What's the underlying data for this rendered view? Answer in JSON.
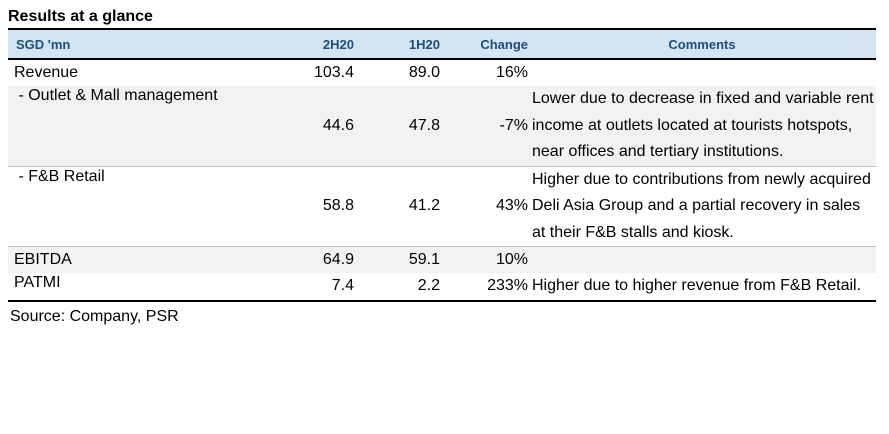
{
  "title": "Results at a glance",
  "header": {
    "label": "SGD 'mn",
    "col1": "2H20",
    "col2": "1H20",
    "col3": "Change",
    "col4": "Comments"
  },
  "rows": [
    {
      "label": "Revenue",
      "v1": "103.4",
      "v2": "89.0",
      "change": "16%",
      "comment": ""
    },
    {
      "label": " - Outlet & Mall management",
      "v1": "44.6",
      "v2": "47.8",
      "change": "-7%",
      "comment": "Lower due to decrease in fixed and variable rent income at outlets located at tourists hotspots, near offices and tertiary institutions."
    },
    {
      "label": " - F&B Retail",
      "v1": "58.8",
      "v2": "41.2",
      "change": "43%",
      "comment": "Higher due to contributions from newly acquired Deli Asia Group and a partial recovery in sales at their F&B stalls and kiosk."
    },
    {
      "label": "EBITDA",
      "v1": "64.9",
      "v2": "59.1",
      "change": "10%",
      "comment": ""
    },
    {
      "label": "PATMI",
      "v1": "7.4",
      "v2": "2.2",
      "change": "233%",
      "comment": "Higher due to higher revenue from F&B Retail."
    }
  ],
  "source": "Source: Company, PSR"
}
